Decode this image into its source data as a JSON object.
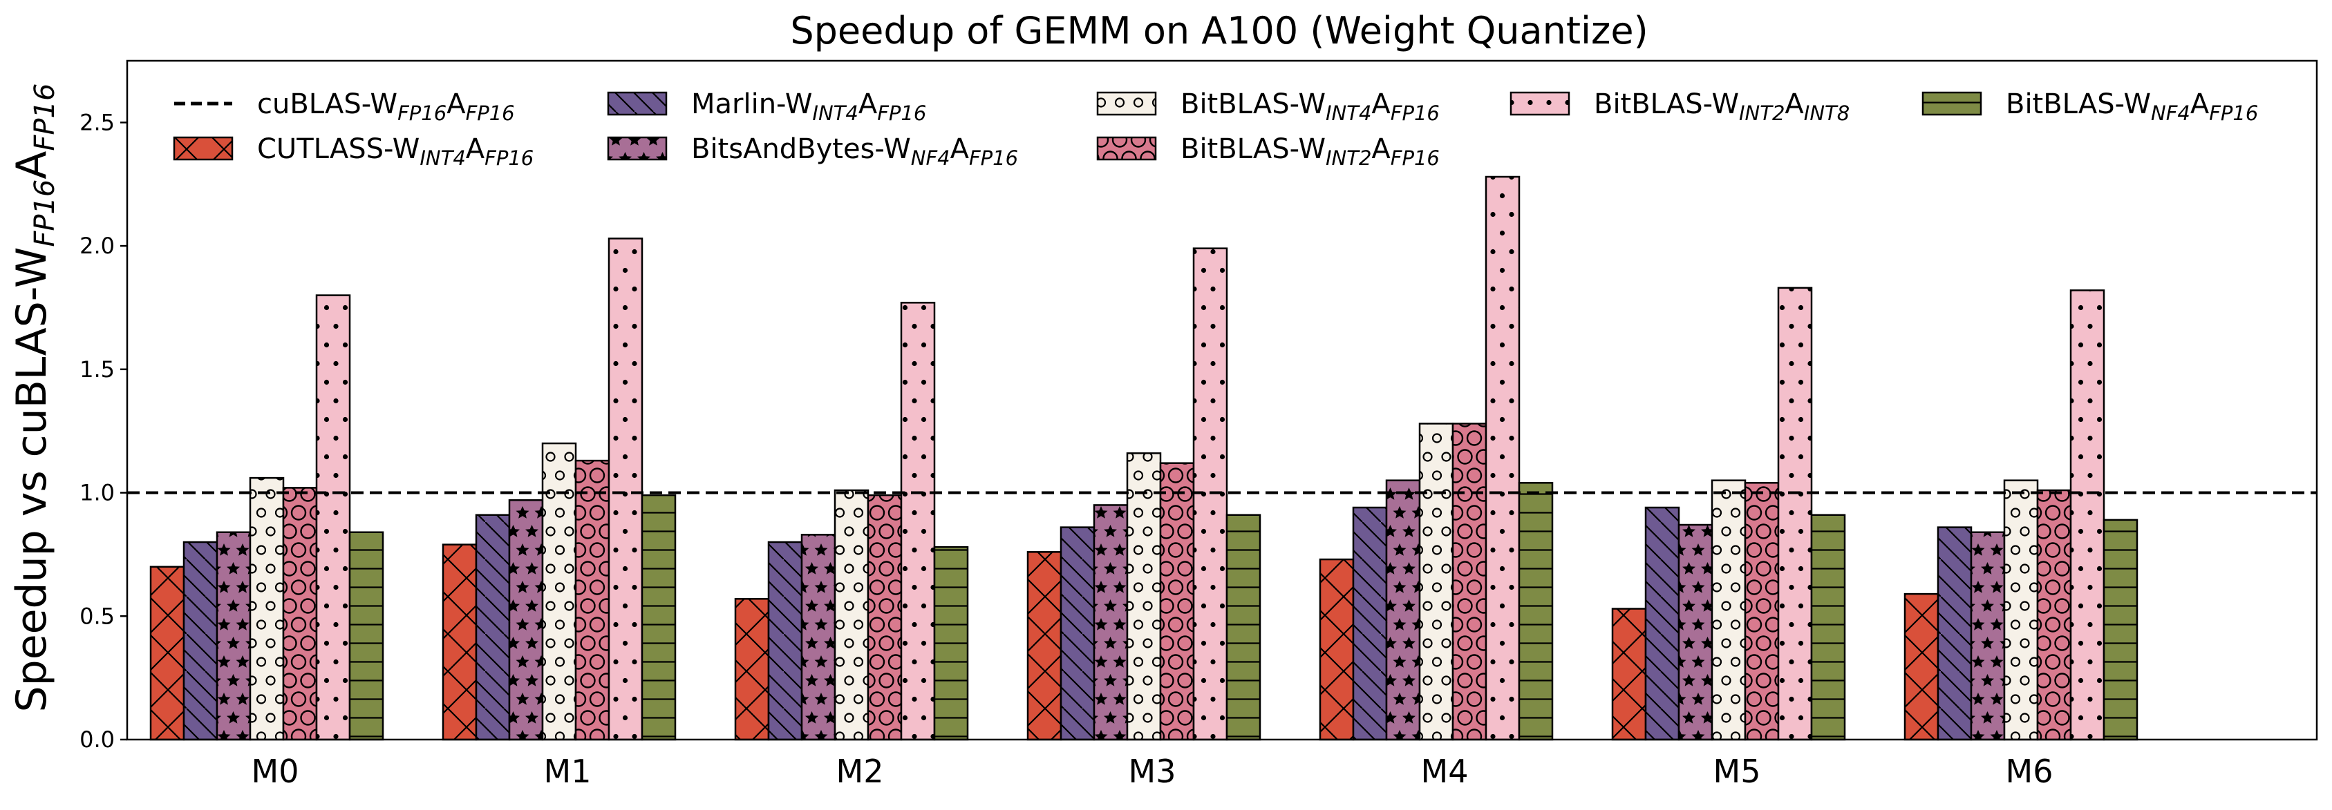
{
  "chart_data": {
    "type": "bar",
    "title": "Speedup of GEMM on A100 (Weight Quantize)",
    "xlabel": "",
    "ylabel": {
      "prefix": "Speedup vs cuBLAS-W",
      "sub1": "FP16",
      "mid": "A",
      "sub2": "FP16"
    },
    "ylim": [
      0,
      2.75
    ],
    "yticks": [
      "0.0",
      "0.5",
      "1.0",
      "1.5",
      "2.0",
      "2.5"
    ],
    "grid": false,
    "legend_position": "top",
    "categories": [
      "M0",
      "M1",
      "M2",
      "M3",
      "M4",
      "M5",
      "M6"
    ],
    "reference_line": {
      "value": 1.0,
      "style": "dashed",
      "label": {
        "prefix": "cuBLAS-W",
        "sub1": "FP16",
        "mid": "A",
        "sub2": "FP16"
      }
    },
    "series": [
      {
        "label": {
          "prefix": "CUTLASS-W",
          "sub1": "INT4",
          "mid": "A",
          "sub2": "FP16"
        },
        "color": "#D9503A",
        "hatch": "crosshatch-x",
        "values": [
          0.7,
          0.79,
          0.57,
          0.76,
          0.73,
          0.53,
          0.59
        ]
      },
      {
        "label": {
          "prefix": "Marlin-W",
          "sub1": "INT4",
          "mid": "A",
          "sub2": "FP16"
        },
        "color": "#6E5A92",
        "hatch": "backslash",
        "values": [
          0.8,
          0.91,
          0.8,
          0.86,
          0.94,
          0.94,
          0.86
        ]
      },
      {
        "label": {
          "prefix": "BitsAndBytes-W",
          "sub1": "NF4",
          "mid": "A",
          "sub2": "FP16"
        },
        "color": "#A86F96",
        "hatch": "star",
        "values": [
          0.84,
          0.97,
          0.83,
          0.95,
          1.05,
          0.87,
          0.84
        ]
      },
      {
        "label": {
          "prefix": "BitBLAS-W",
          "sub1": "INT4",
          "mid": "A",
          "sub2": "FP16"
        },
        "color": "#F6F1E8",
        "hatch": "small-circle",
        "values": [
          1.06,
          1.2,
          1.01,
          1.16,
          1.28,
          1.05,
          1.05
        ]
      },
      {
        "label": {
          "prefix": "BitBLAS-W",
          "sub1": "INT2",
          "mid": "A",
          "sub2": "FP16"
        },
        "color": "#D97A8E",
        "hatch": "big-circle",
        "values": [
          1.02,
          1.13,
          0.99,
          1.12,
          1.28,
          1.04,
          1.01
        ]
      },
      {
        "label": {
          "prefix": "BitBLAS-W",
          "sub1": "INT2",
          "mid": "A",
          "sub2": "INT8"
        },
        "color": "#F4BFCB",
        "hatch": "dots",
        "values": [
          1.8,
          2.03,
          1.77,
          1.99,
          2.28,
          1.83,
          1.82
        ]
      },
      {
        "label": {
          "prefix": "BitBLAS-W",
          "sub1": "NF4",
          "mid": "A",
          "sub2": "FP16"
        },
        "color": "#7E8B45",
        "hatch": "horizontal",
        "values": [
          0.84,
          0.99,
          0.78,
          0.91,
          1.04,
          0.91,
          0.89
        ]
      }
    ]
  }
}
